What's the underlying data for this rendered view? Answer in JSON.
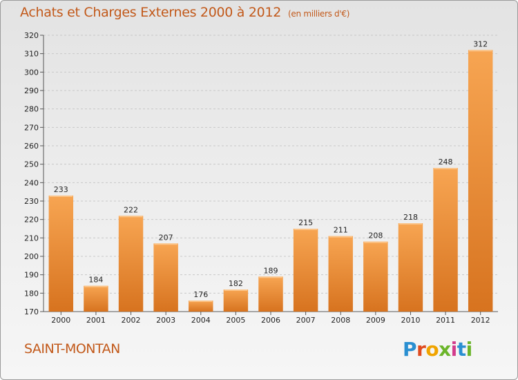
{
  "header": {
    "title": "Achats et Charges Externes 2000 à 2012",
    "unit": "(en milliers d'€)"
  },
  "footer": {
    "city": "SAINT-MONTAN",
    "logo": [
      "P",
      "r",
      "o",
      "x",
      "i",
      "t",
      "i"
    ]
  },
  "colors": {
    "bar_light": "#f7a552",
    "bar_dark": "#d7731f",
    "title": "#c2591a"
  },
  "chart_data": {
    "type": "bar",
    "title": "Achats et Charges Externes 2000 à 2012",
    "subtitle": "(en milliers d'€)",
    "xlabel": "",
    "ylabel": "",
    "categories": [
      "2000",
      "2001",
      "2002",
      "2003",
      "2004",
      "2005",
      "2006",
      "2007",
      "2008",
      "2009",
      "2010",
      "2011",
      "2012"
    ],
    "values": [
      233,
      184,
      222,
      207,
      176,
      182,
      189,
      215,
      211,
      208,
      218,
      248,
      312
    ],
    "ylim": [
      170,
      320
    ],
    "yticks": [
      170,
      180,
      190,
      200,
      210,
      220,
      230,
      240,
      250,
      260,
      270,
      280,
      290,
      300,
      310,
      320
    ],
    "grid": true
  }
}
